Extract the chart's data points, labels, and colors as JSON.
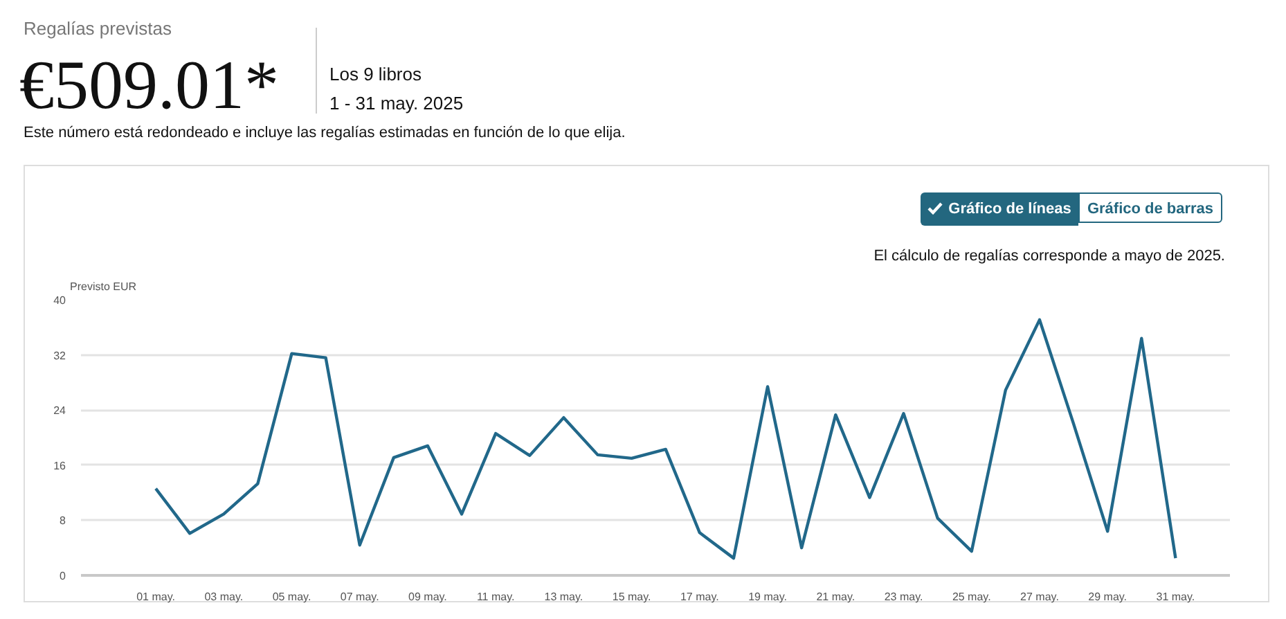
{
  "chart_data": {
    "type": "line",
    "title": "Regalías previstas",
    "subtitle": "€509.01*",
    "ylabel": "Previsto EUR",
    "annotations": [
      "Los 9 libros",
      "1 - 31 may. 2025",
      "Este número está redondeado e incluye las regalías estimadas en función de lo que elija.",
      "Gráfico de líneas",
      "Gráfico de barras",
      "El cálculo de regalías corresponde a mayo de 2025."
    ],
    "categories": [
      "01 may.",
      null,
      "03 may.",
      null,
      "05 may.",
      null,
      "07 may.",
      null,
      "09 may.",
      null,
      "11 may.",
      null,
      "13 may.",
      null,
      "15 may.",
      null,
      "17 may.",
      null,
      "19 may.",
      null,
      "21 may.",
      null,
      "23 may.",
      null,
      "25 may.",
      null,
      "27 may.",
      null,
      "29 may.",
      null,
      "31 may."
    ],
    "series": [
      {
        "color": "#21688a",
        "values": [
          12.6,
          6.1,
          8.9,
          13.3,
          32.2,
          31.6,
          4.4,
          17.1,
          18.8,
          8.9,
          20.6,
          17.4,
          22.9,
          17.5,
          17.0,
          18.3,
          6.2,
          2.5,
          27.4,
          4.0,
          23.3,
          11.3,
          23.5,
          8.3,
          3.5,
          26.9,
          37.1,
          22.0,
          6.4,
          34.4,
          2.5
        ]
      }
    ],
    "ylim": [
      0,
      40
    ],
    "yticks": [
      0,
      8,
      16,
      24,
      32,
      40
    ],
    "grid": "y"
  }
}
